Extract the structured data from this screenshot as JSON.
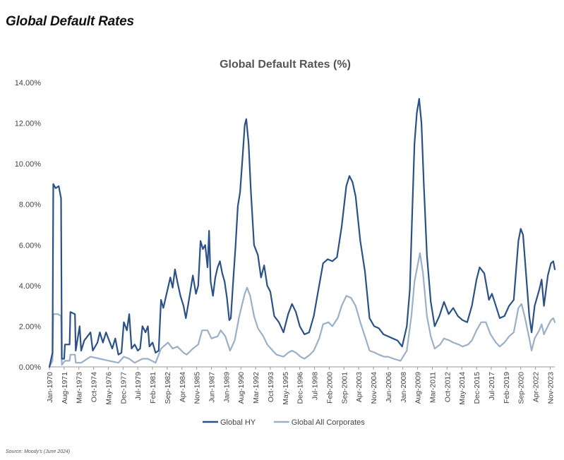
{
  "page": {
    "heading": "Global Default Rates",
    "source": "Source: Moody's (June 2024)"
  },
  "chart_data": {
    "type": "line",
    "title": "Global Default Rates (%)",
    "xlabel": "",
    "ylabel": "",
    "ylim": [
      0,
      14
    ],
    "y_ticks": [
      "0.00%",
      "2.00%",
      "4.00%",
      "6.00%",
      "8.00%",
      "10.00%",
      "12.00%",
      "14.00%"
    ],
    "x_range": [
      "1970-01",
      "2024-05"
    ],
    "x_ticks": [
      "Jan-1970",
      "Aug-1971",
      "Mar-1973",
      "Oct-1974",
      "May-1976",
      "Dec-1977",
      "Jul-1979",
      "Feb-1981",
      "Sep-1982",
      "Apr-1984",
      "Nov-1985",
      "Jun-1987",
      "Jan-1989",
      "Aug-1990",
      "Mar-1992",
      "Oct-1993",
      "May-1995",
      "Dec-1996",
      "Jul-1998",
      "Feb-2000",
      "Sep-2001",
      "Apr-2003",
      "Nov-2004",
      "Jun-2006",
      "Jan-2008",
      "Aug-2009",
      "Mar-2011",
      "Oct-2012",
      "May-2014",
      "Dec-2015",
      "Jul-2017",
      "Feb-2019",
      "Sep-2020",
      "Apr-2022",
      "Nov-2023"
    ],
    "legend_position": "bottom",
    "grid": false,
    "series": [
      {
        "name": "Global HY",
        "color": "#2b5187",
        "points": [
          [
            "1970-01",
            0.0
          ],
          [
            "1970-05",
            0.7
          ],
          [
            "1970-06",
            9.0
          ],
          [
            "1970-09",
            8.8
          ],
          [
            "1971-01",
            8.9
          ],
          [
            "1971-04",
            8.3
          ],
          [
            "1971-05",
            0.4
          ],
          [
            "1971-08",
            0.4
          ],
          [
            "1971-09",
            1.1
          ],
          [
            "1972-03",
            1.1
          ],
          [
            "1972-04",
            2.7
          ],
          [
            "1972-10",
            2.6
          ],
          [
            "1972-11",
            0.8
          ],
          [
            "1973-04",
            2.0
          ],
          [
            "1973-06",
            0.8
          ],
          [
            "1973-10",
            1.3
          ],
          [
            "1974-06",
            1.7
          ],
          [
            "1974-09",
            0.8
          ],
          [
            "1975-03",
            1.2
          ],
          [
            "1975-06",
            1.7
          ],
          [
            "1975-10",
            1.2
          ],
          [
            "1976-02",
            1.7
          ],
          [
            "1976-06",
            1.3
          ],
          [
            "1976-10",
            0.9
          ],
          [
            "1977-02",
            1.4
          ],
          [
            "1977-06",
            0.6
          ],
          [
            "1977-10",
            0.7
          ],
          [
            "1978-01",
            2.2
          ],
          [
            "1978-05",
            1.8
          ],
          [
            "1978-08",
            2.6
          ],
          [
            "1978-11",
            0.9
          ],
          [
            "1979-03",
            1.1
          ],
          [
            "1979-07",
            0.8
          ],
          [
            "1979-10",
            0.9
          ],
          [
            "1980-01",
            2.0
          ],
          [
            "1980-05",
            1.7
          ],
          [
            "1980-08",
            2.0
          ],
          [
            "1980-10",
            1.0
          ],
          [
            "1981-02",
            1.2
          ],
          [
            "1981-06",
            0.7
          ],
          [
            "1981-10",
            0.8
          ],
          [
            "1982-01",
            3.3
          ],
          [
            "1982-04",
            2.9
          ],
          [
            "1982-07",
            3.4
          ],
          [
            "1982-10",
            3.9
          ],
          [
            "1983-01",
            4.4
          ],
          [
            "1983-04",
            3.9
          ],
          [
            "1983-07",
            4.8
          ],
          [
            "1983-10",
            4.2
          ],
          [
            "1984-02",
            3.5
          ],
          [
            "1984-06",
            3.0
          ],
          [
            "1984-09",
            2.4
          ],
          [
            "1985-01",
            3.3
          ],
          [
            "1985-06",
            4.5
          ],
          [
            "1985-10",
            3.6
          ],
          [
            "1986-01",
            4.0
          ],
          [
            "1986-04",
            6.2
          ],
          [
            "1986-07",
            5.8
          ],
          [
            "1986-10",
            6.0
          ],
          [
            "1987-01",
            4.9
          ],
          [
            "1987-03",
            6.7
          ],
          [
            "1987-05",
            4.2
          ],
          [
            "1987-08",
            3.5
          ],
          [
            "1987-11",
            4.4
          ],
          [
            "1988-02",
            4.9
          ],
          [
            "1988-05",
            5.2
          ],
          [
            "1988-08",
            4.6
          ],
          [
            "1988-11",
            4.2
          ],
          [
            "1989-02",
            3.4
          ],
          [
            "1989-05",
            2.3
          ],
          [
            "1989-07",
            2.4
          ],
          [
            "1989-10",
            4.2
          ],
          [
            "1990-01",
            5.9
          ],
          [
            "1990-04",
            7.9
          ],
          [
            "1990-07",
            8.6
          ],
          [
            "1990-10",
            10.2
          ],
          [
            "1991-01",
            11.9
          ],
          [
            "1991-03",
            12.2
          ],
          [
            "1991-06",
            11.0
          ],
          [
            "1991-09",
            8.6
          ],
          [
            "1992-01",
            6.0
          ],
          [
            "1992-06",
            5.5
          ],
          [
            "1992-10",
            4.4
          ],
          [
            "1993-02",
            5.0
          ],
          [
            "1993-06",
            4.0
          ],
          [
            "1993-10",
            3.7
          ],
          [
            "1994-03",
            2.5
          ],
          [
            "1994-09",
            2.2
          ],
          [
            "1995-03",
            1.7
          ],
          [
            "1995-09",
            2.6
          ],
          [
            "1996-02",
            3.1
          ],
          [
            "1996-07",
            2.7
          ],
          [
            "1996-12",
            2.0
          ],
          [
            "1997-06",
            1.6
          ],
          [
            "1997-12",
            1.7
          ],
          [
            "1998-06",
            2.5
          ],
          [
            "1998-12",
            3.8
          ],
          [
            "1999-06",
            5.1
          ],
          [
            "1999-12",
            5.3
          ],
          [
            "2000-06",
            5.2
          ],
          [
            "2000-12",
            5.4
          ],
          [
            "2001-06",
            6.9
          ],
          [
            "2001-12",
            8.9
          ],
          [
            "2002-04",
            9.4
          ],
          [
            "2002-08",
            9.1
          ],
          [
            "2002-12",
            8.4
          ],
          [
            "2003-06",
            6.2
          ],
          [
            "2003-12",
            4.7
          ],
          [
            "2004-06",
            2.4
          ],
          [
            "2004-12",
            2.0
          ],
          [
            "2005-06",
            1.9
          ],
          [
            "2005-12",
            1.6
          ],
          [
            "2006-06",
            1.5
          ],
          [
            "2006-12",
            1.4
          ],
          [
            "2007-06",
            1.3
          ],
          [
            "2007-12",
            1.0
          ],
          [
            "2008-06",
            2.0
          ],
          [
            "2008-10",
            3.8
          ],
          [
            "2009-01",
            7.5
          ],
          [
            "2009-04",
            11.0
          ],
          [
            "2009-07",
            12.5
          ],
          [
            "2009-10",
            13.2
          ],
          [
            "2010-01",
            12.0
          ],
          [
            "2010-04",
            9.0
          ],
          [
            "2010-08",
            5.5
          ],
          [
            "2011-01",
            3.2
          ],
          [
            "2011-06",
            2.0
          ],
          [
            "2011-12",
            2.5
          ],
          [
            "2012-06",
            3.2
          ],
          [
            "2012-12",
            2.6
          ],
          [
            "2013-06",
            2.9
          ],
          [
            "2013-12",
            2.5
          ],
          [
            "2014-06",
            2.3
          ],
          [
            "2014-12",
            2.2
          ],
          [
            "2015-06",
            3.0
          ],
          [
            "2015-12",
            4.3
          ],
          [
            "2016-04",
            4.9
          ],
          [
            "2016-10",
            4.6
          ],
          [
            "2017-04",
            3.3
          ],
          [
            "2017-08",
            3.6
          ],
          [
            "2018-01",
            3.0
          ],
          [
            "2018-06",
            2.4
          ],
          [
            "2018-12",
            2.5
          ],
          [
            "2019-06",
            3.0
          ],
          [
            "2019-12",
            3.3
          ],
          [
            "2020-06",
            6.2
          ],
          [
            "2020-09",
            6.8
          ],
          [
            "2020-12",
            6.5
          ],
          [
            "2021-04",
            4.5
          ],
          [
            "2021-08",
            2.5
          ],
          [
            "2021-11",
            1.7
          ],
          [
            "2022-03",
            3.0
          ],
          [
            "2022-09",
            3.8
          ],
          [
            "2022-12",
            4.3
          ],
          [
            "2023-03",
            3.0
          ],
          [
            "2023-08",
            4.5
          ],
          [
            "2023-12",
            5.1
          ],
          [
            "2024-03",
            5.2
          ],
          [
            "2024-05",
            4.8
          ]
        ]
      },
      {
        "name": "Global All Corporates",
        "color": "#9ab0c8",
        "points": [
          [
            "1970-01",
            0.0
          ],
          [
            "1970-05",
            0.3
          ],
          [
            "1970-06",
            2.6
          ],
          [
            "1970-12",
            2.6
          ],
          [
            "1971-04",
            2.5
          ],
          [
            "1971-05",
            0.1
          ],
          [
            "1971-09",
            0.3
          ],
          [
            "1972-03",
            0.3
          ],
          [
            "1972-04",
            0.6
          ],
          [
            "1972-10",
            0.6
          ],
          [
            "1972-11",
            0.2
          ],
          [
            "1973-06",
            0.2
          ],
          [
            "1974-06",
            0.5
          ],
          [
            "1975-06",
            0.4
          ],
          [
            "1976-06",
            0.3
          ],
          [
            "1977-06",
            0.2
          ],
          [
            "1978-01",
            0.5
          ],
          [
            "1978-08",
            0.4
          ],
          [
            "1979-03",
            0.2
          ],
          [
            "1980-01",
            0.4
          ],
          [
            "1980-08",
            0.4
          ],
          [
            "1981-06",
            0.2
          ],
          [
            "1982-01",
            0.9
          ],
          [
            "1982-10",
            1.2
          ],
          [
            "1983-04",
            0.9
          ],
          [
            "1983-10",
            1.0
          ],
          [
            "1984-06",
            0.7
          ],
          [
            "1984-10",
            0.6
          ],
          [
            "1985-06",
            0.9
          ],
          [
            "1986-01",
            1.1
          ],
          [
            "1986-06",
            1.8
          ],
          [
            "1987-01",
            1.8
          ],
          [
            "1987-06",
            1.4
          ],
          [
            "1988-02",
            1.5
          ],
          [
            "1988-06",
            1.8
          ],
          [
            "1988-12",
            1.5
          ],
          [
            "1989-06",
            0.8
          ],
          [
            "1989-12",
            1.3
          ],
          [
            "1990-06",
            2.5
          ],
          [
            "1991-01",
            3.6
          ],
          [
            "1991-04",
            3.9
          ],
          [
            "1991-08",
            3.5
          ],
          [
            "1992-01",
            2.5
          ],
          [
            "1992-06",
            1.9
          ],
          [
            "1993-01",
            1.5
          ],
          [
            "1993-06",
            1.1
          ],
          [
            "1994-01",
            0.8
          ],
          [
            "1994-06",
            0.6
          ],
          [
            "1995-03",
            0.5
          ],
          [
            "1995-09",
            0.7
          ],
          [
            "1996-02",
            0.8
          ],
          [
            "1996-07",
            0.7
          ],
          [
            "1997-01",
            0.5
          ],
          [
            "1997-06",
            0.4
          ],
          [
            "1998-01",
            0.6
          ],
          [
            "1998-06",
            0.8
          ],
          [
            "1999-01",
            1.4
          ],
          [
            "1999-06",
            2.1
          ],
          [
            "2000-01",
            2.2
          ],
          [
            "2000-06",
            2.0
          ],
          [
            "2001-01",
            2.4
          ],
          [
            "2001-06",
            3.0
          ],
          [
            "2001-12",
            3.5
          ],
          [
            "2002-06",
            3.4
          ],
          [
            "2002-12",
            3.0
          ],
          [
            "2003-06",
            2.2
          ],
          [
            "2003-12",
            1.5
          ],
          [
            "2004-06",
            0.8
          ],
          [
            "2005-01",
            0.7
          ],
          [
            "2005-06",
            0.6
          ],
          [
            "2006-01",
            0.5
          ],
          [
            "2006-06",
            0.5
          ],
          [
            "2007-01",
            0.4
          ],
          [
            "2007-10",
            0.3
          ],
          [
            "2008-06",
            0.8
          ],
          [
            "2008-12",
            2.5
          ],
          [
            "2009-04",
            4.2
          ],
          [
            "2009-08",
            5.0
          ],
          [
            "2009-11",
            5.6
          ],
          [
            "2010-03",
            4.6
          ],
          [
            "2010-08",
            2.5
          ],
          [
            "2011-01",
            1.5
          ],
          [
            "2011-06",
            0.9
          ],
          [
            "2012-01",
            1.1
          ],
          [
            "2012-06",
            1.4
          ],
          [
            "2013-01",
            1.3
          ],
          [
            "2013-06",
            1.2
          ],
          [
            "2014-01",
            1.1
          ],
          [
            "2014-06",
            1.0
          ],
          [
            "2015-01",
            1.1
          ],
          [
            "2015-06",
            1.3
          ],
          [
            "2015-12",
            1.8
          ],
          [
            "2016-06",
            2.2
          ],
          [
            "2016-12",
            2.2
          ],
          [
            "2017-06",
            1.6
          ],
          [
            "2018-01",
            1.2
          ],
          [
            "2018-06",
            1.0
          ],
          [
            "2018-12",
            1.2
          ],
          [
            "2019-06",
            1.5
          ],
          [
            "2019-12",
            1.7
          ],
          [
            "2020-06",
            2.9
          ],
          [
            "2020-10",
            3.1
          ],
          [
            "2021-02",
            2.5
          ],
          [
            "2021-08",
            1.4
          ],
          [
            "2021-11",
            0.8
          ],
          [
            "2022-03",
            1.4
          ],
          [
            "2022-09",
            1.8
          ],
          [
            "2022-12",
            2.1
          ],
          [
            "2023-03",
            1.6
          ],
          [
            "2023-08",
            2.0
          ],
          [
            "2023-12",
            2.3
          ],
          [
            "2024-03",
            2.4
          ],
          [
            "2024-05",
            2.2
          ]
        ]
      }
    ]
  }
}
